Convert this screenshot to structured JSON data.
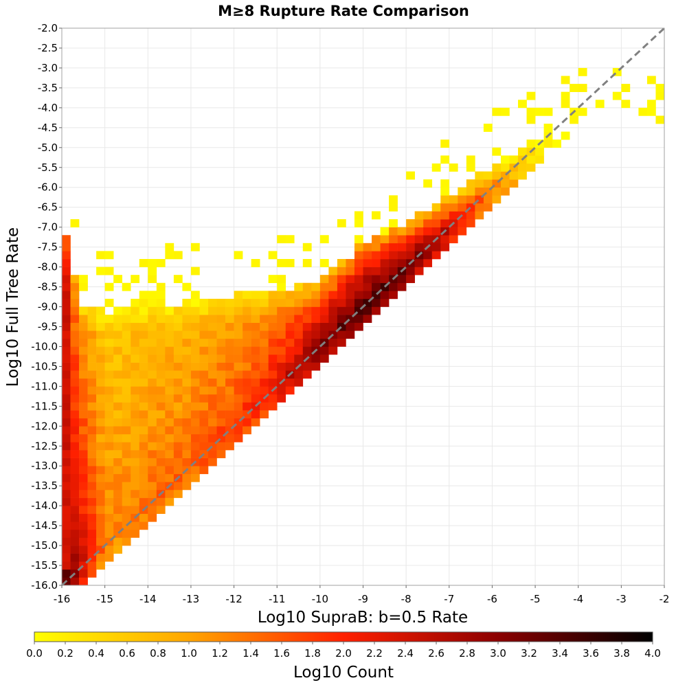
{
  "chart_data": {
    "type": "heatmap",
    "title": "M≥8 Rupture Rate Comparison",
    "xlabel": "Log10 SupraB: b=0.5 Rate",
    "ylabel": "Log10 Full Tree Rate",
    "xlim": [
      -16,
      -2
    ],
    "ylim": [
      -16,
      -2
    ],
    "x_ticks": [
      "-16",
      "-15",
      "-14",
      "-13",
      "-12",
      "-11",
      "-10",
      "-9",
      "-8",
      "-7",
      "-6",
      "-5",
      "-4",
      "-3",
      "-2"
    ],
    "y_ticks": [
      "-2.0",
      "-2.5",
      "-3.0",
      "-3.5",
      "-4.0",
      "-4.5",
      "-5.0",
      "-5.5",
      "-6.0",
      "-6.5",
      "-7.0",
      "-7.5",
      "-8.0",
      "-8.5",
      "-9.0",
      "-9.5",
      "-10.0",
      "-10.5",
      "-11.0",
      "-11.5",
      "-12.0",
      "-12.5",
      "-13.0",
      "-13.5",
      "-14.0",
      "-14.5",
      "-15.0",
      "-15.5",
      "-16.0"
    ],
    "bin_width": 0.2,
    "grid": true,
    "reference_line": "y = x (dashed, gray)",
    "colorbar": {
      "label": "Log10 Count",
      "range": [
        0,
        4
      ],
      "ticks": [
        "0.0",
        "0.2",
        "0.4",
        "0.6",
        "0.8",
        "1.0",
        "1.2",
        "1.4",
        "1.6",
        "1.8",
        "2.0",
        "2.2",
        "2.4",
        "2.6",
        "2.8",
        "3.0",
        "3.2",
        "3.4",
        "3.6",
        "3.8",
        "4.0"
      ],
      "colormap": [
        "#ffff00",
        "#ffa500",
        "#ff2000",
        "#8b0000",
        "#000000"
      ],
      "placement": "bottom"
    },
    "colors": {
      "reference_line": "#808080",
      "grid": "#e8e8e8"
    },
    "density_model": {
      "description": "Approximate distribution of log10 counts per 0.2-wide bin, estimated from the figure",
      "ridge": [
        {
          "x": -15.9,
          "peak": 3.3
        },
        {
          "x": -15,
          "peak": 1.3
        },
        {
          "x": -13,
          "peak": 1.6
        },
        {
          "x": -11.5,
          "peak": 2.0
        },
        {
          "x": -10.5,
          "peak": 2.7
        },
        {
          "x": -10,
          "peak": 3.1
        },
        {
          "x": -9,
          "peak": 3.5
        },
        {
          "x": -8,
          "peak": 3.3
        },
        {
          "x": -7,
          "peak": 2.6
        },
        {
          "x": -6,
          "peak": 1.3
        },
        {
          "x": -4.6,
          "peak": 0.5
        }
      ],
      "lower_edge_offset": -0.5,
      "upper_envelope": [
        {
          "x": -15.9,
          "y": -7.2
        },
        {
          "x": -15.5,
          "y": -9.0
        },
        {
          "x": -12,
          "y": -8.7
        },
        {
          "x": -10,
          "y": -8.4
        },
        {
          "x": -9,
          "y": -7.4
        },
        {
          "x": -8,
          "y": -6.9
        },
        {
          "x": -7,
          "y": -6.2
        },
        {
          "x": -6,
          "y": -5.4
        },
        {
          "x": -5,
          "y": -4.9
        },
        {
          "x": -4.2,
          "y": -4.4
        }
      ],
      "left_column": {
        "x": -15.9,
        "y_range": [
          -16,
          -7.2
        ],
        "value": 2.4
      }
    }
  }
}
